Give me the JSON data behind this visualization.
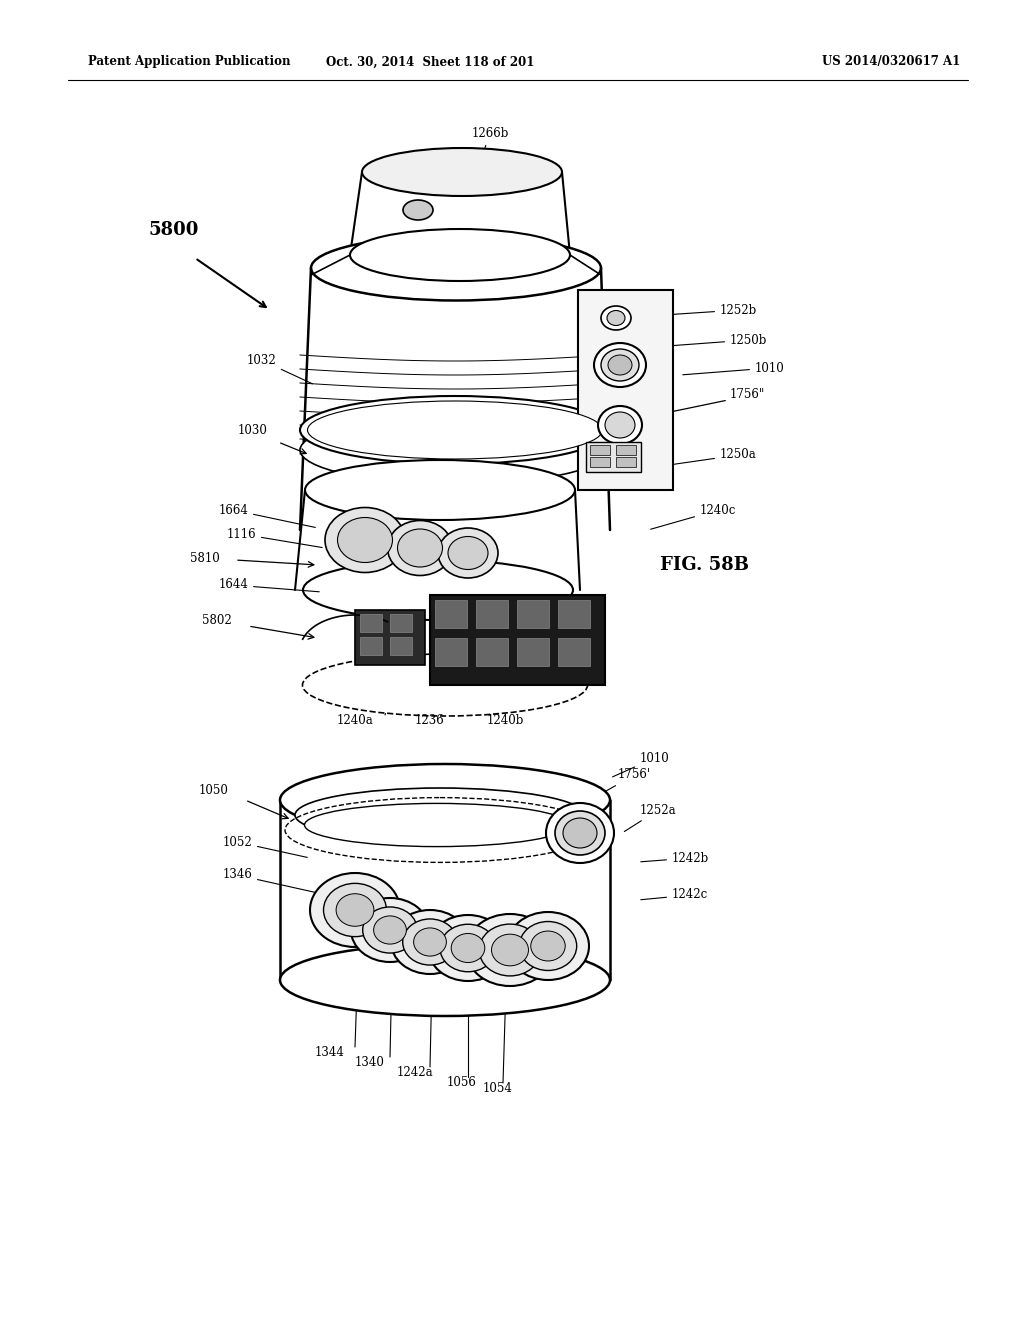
{
  "header_left": "Patent Application Publication",
  "header_mid": "Oct. 30, 2014  Sheet 118 of 201",
  "header_right": "US 2014/0320617 A1",
  "fig_label": "FIG. 58B",
  "background_color": "#ffffff",
  "line_color": "#000000"
}
